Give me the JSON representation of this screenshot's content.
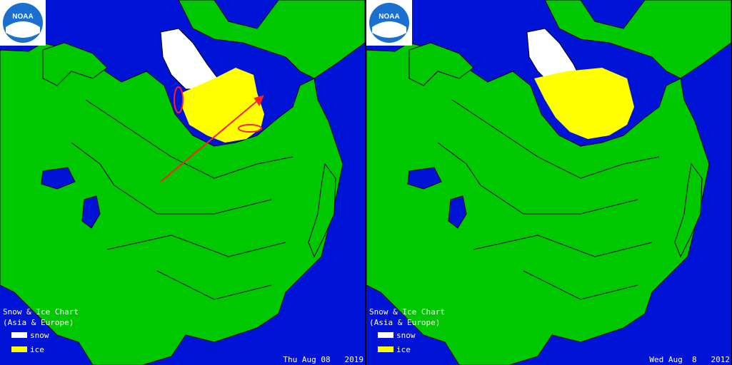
{
  "colors": {
    "ocean": "#0014d8",
    "land": "#00c800",
    "snow": "#ffffff",
    "ice": "#ffff00",
    "border": "#000000",
    "arrow": "#ff2020"
  },
  "panels": [
    {
      "logo": {
        "text": "NOAA",
        "icon": "noaa-logo"
      },
      "legend": {
        "title_line1": "Snow & Ice Chart",
        "title_line2": "(Asia & Europe)",
        "snow_label": "snow",
        "ice_label": "ice"
      },
      "date": "Thu Aug 08   2019"
    },
    {
      "logo": {
        "text": "NOAA",
        "icon": "noaa-logo"
      },
      "legend": {
        "title_line1": "Snow & Ice Chart",
        "title_line2": "(Asia & Europe)",
        "snow_label": "snow",
        "ice_label": "ice"
      },
      "date": "Wed Aug  8   2012"
    }
  ]
}
